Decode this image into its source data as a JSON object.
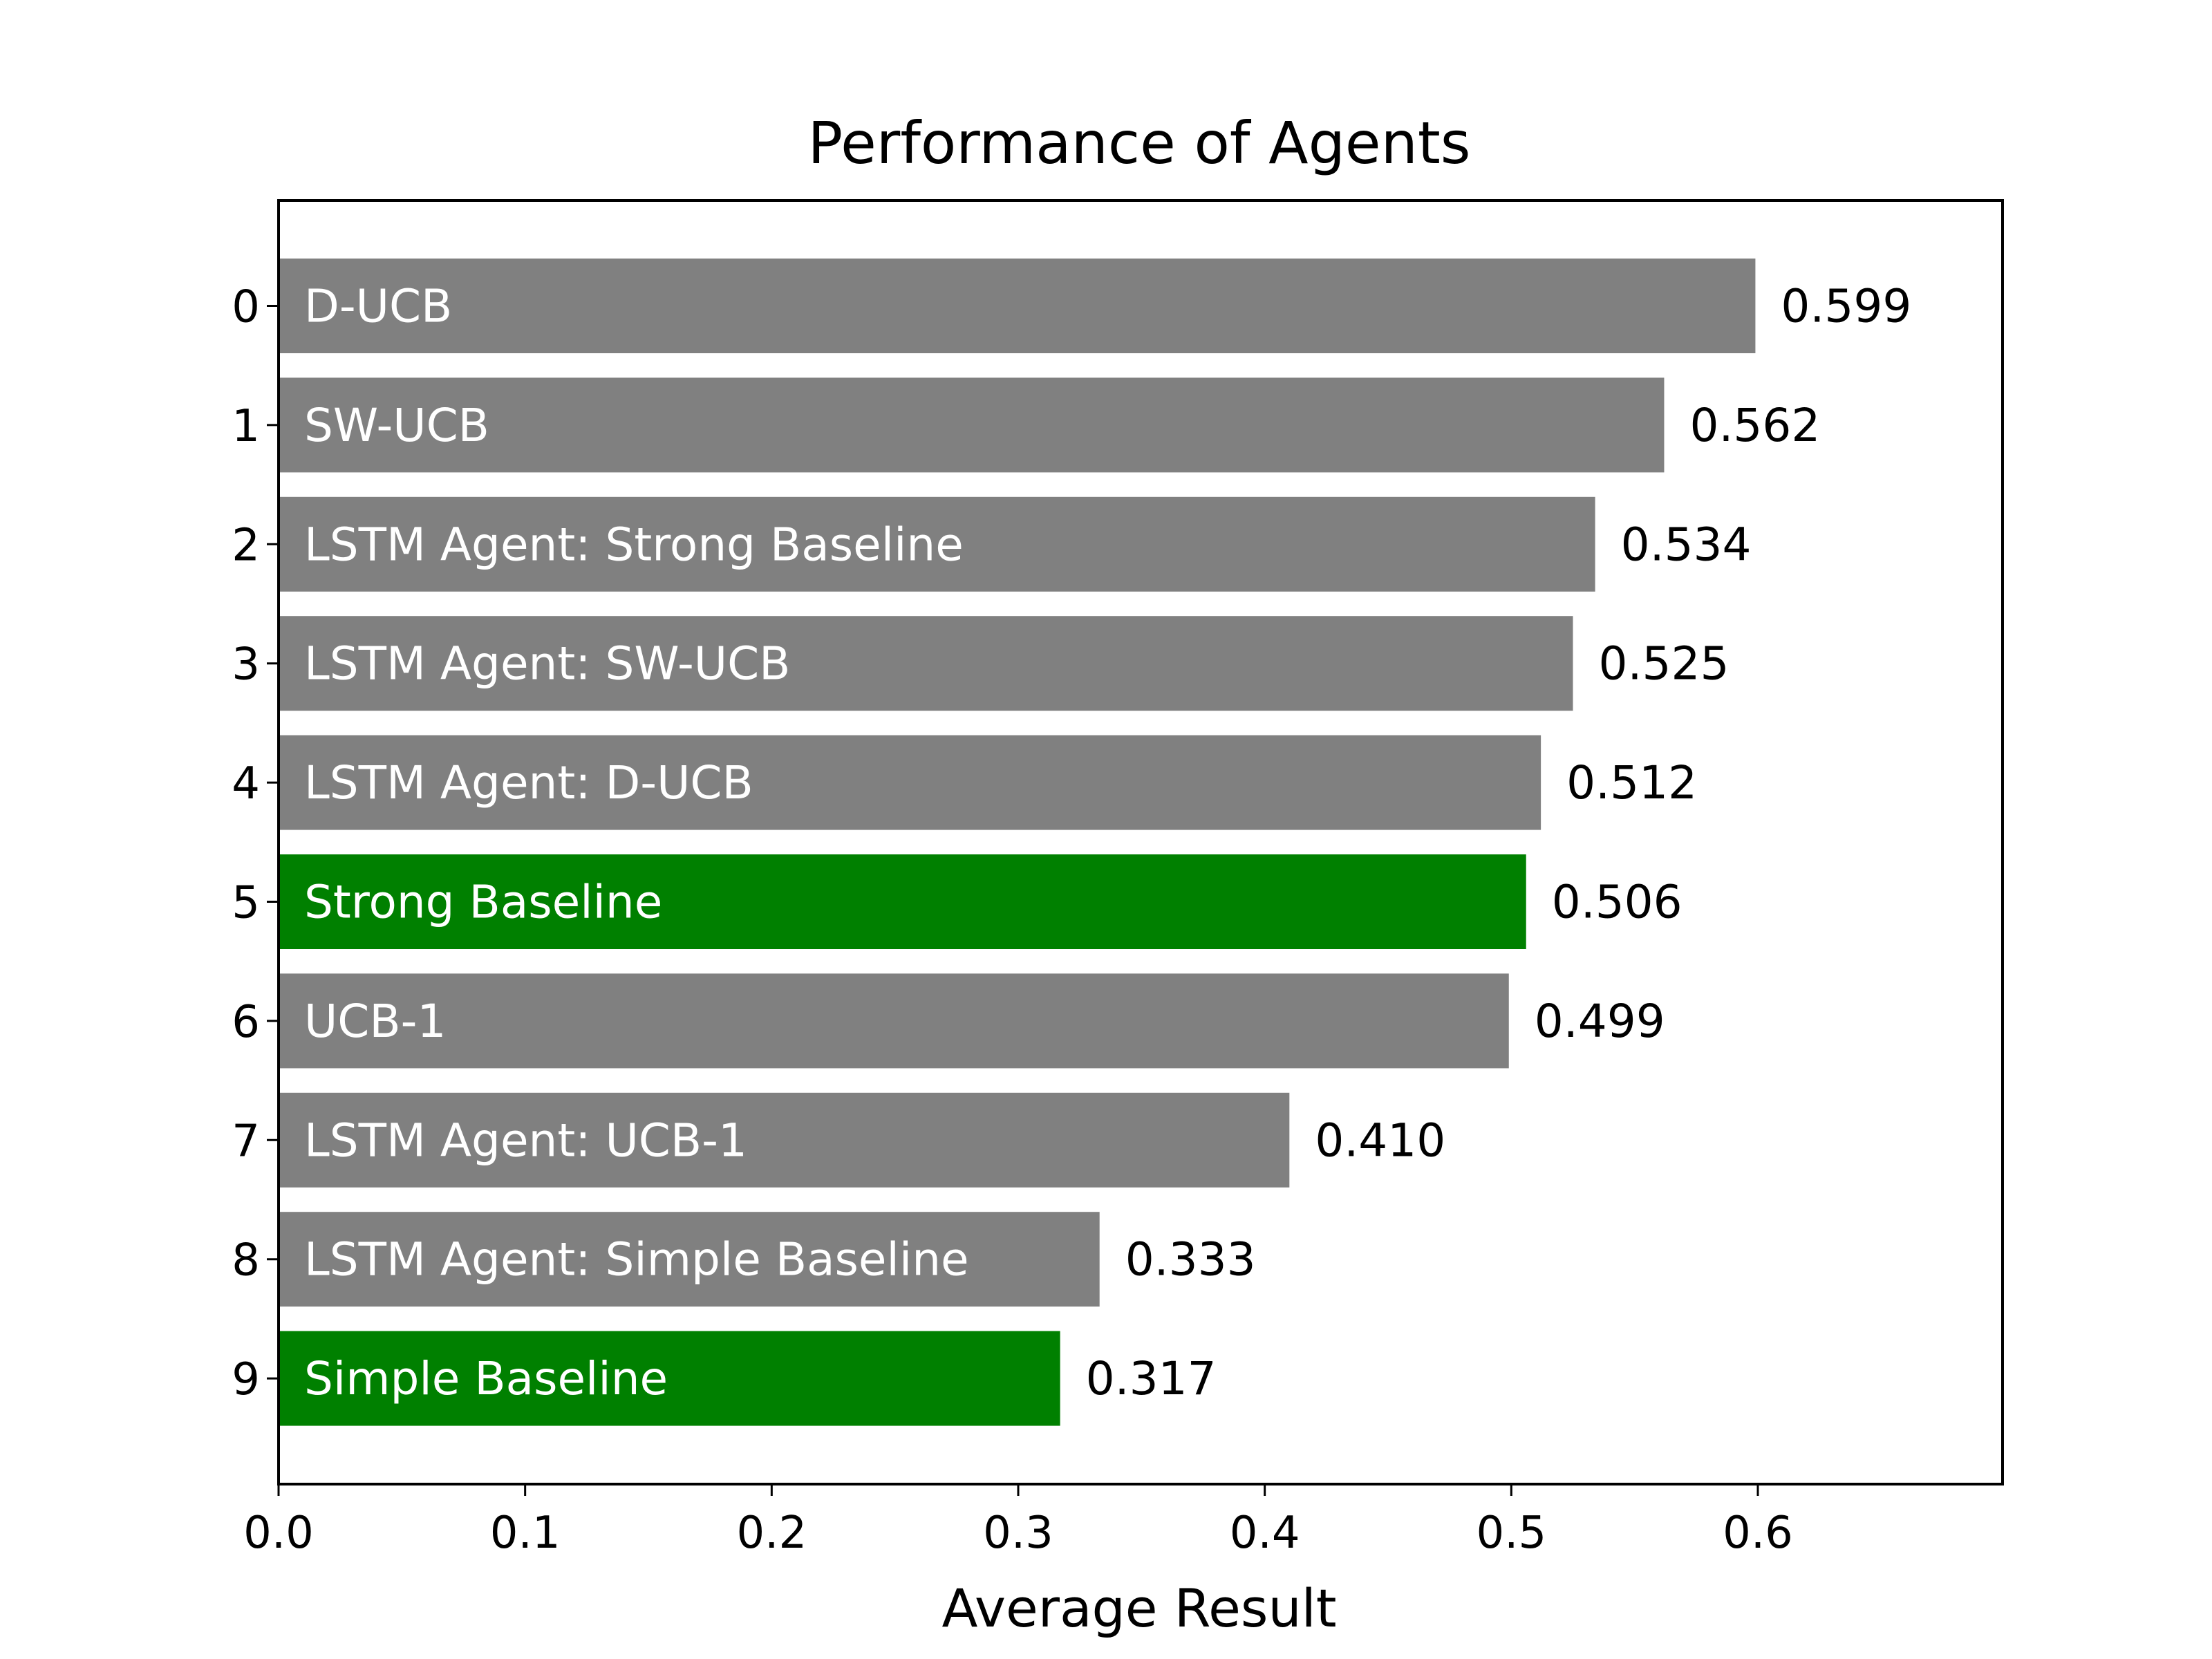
{
  "chart_data": {
    "type": "bar",
    "orientation": "horizontal",
    "title": "Performance of Agents",
    "xlabel": "Average Result",
    "ylabel": "",
    "xlim": [
      0,
      0.7
    ],
    "xticks": [
      "0.0",
      "0.1",
      "0.2",
      "0.3",
      "0.4",
      "0.5",
      "0.6"
    ],
    "categories": [
      "0",
      "1",
      "2",
      "3",
      "4",
      "5",
      "6",
      "7",
      "8",
      "9"
    ],
    "bars": [
      {
        "label": "D-UCB",
        "value": 0.599,
        "value_label": "0.599",
        "color": "#808080"
      },
      {
        "label": "SW-UCB",
        "value": 0.562,
        "value_label": "0.562",
        "color": "#808080"
      },
      {
        "label": "LSTM Agent: Strong Baseline",
        "value": 0.534,
        "value_label": "0.534",
        "color": "#808080"
      },
      {
        "label": "LSTM Agent: SW-UCB",
        "value": 0.525,
        "value_label": "0.525",
        "color": "#808080"
      },
      {
        "label": "LSTM Agent: D-UCB",
        "value": 0.512,
        "value_label": "0.512",
        "color": "#808080"
      },
      {
        "label": "Strong Baseline",
        "value": 0.506,
        "value_label": "0.506",
        "color": "#008000"
      },
      {
        "label": "UCB-1",
        "value": 0.499,
        "value_label": "0.499",
        "color": "#808080"
      },
      {
        "label": "LSTM Agent: UCB-1",
        "value": 0.41,
        "value_label": "0.410",
        "color": "#808080"
      },
      {
        "label": "LSTM Agent: Simple Baseline",
        "value": 0.333,
        "value_label": "0.333",
        "color": "#808080"
      },
      {
        "label": "Simple Baseline",
        "value": 0.317,
        "value_label": "0.317",
        "color": "#008000"
      }
    ],
    "grid": false,
    "legend": "none"
  }
}
